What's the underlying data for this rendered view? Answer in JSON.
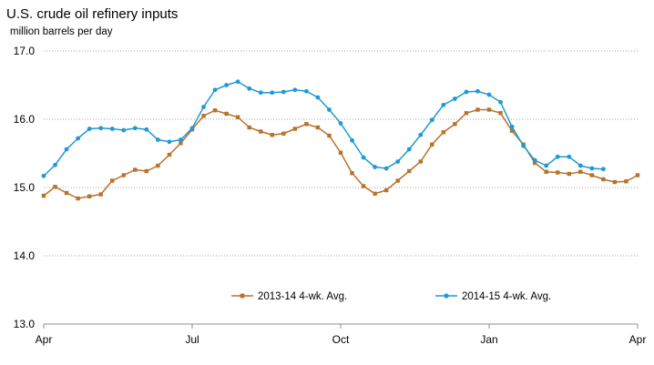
{
  "chart_data": {
    "type": "line",
    "title": "U.S. crude oil refinery inputs",
    "subtitle": "million barrels per day",
    "xlabel": "",
    "ylabel": "",
    "ylim": [
      13.0,
      17.0
    ],
    "y_ticks": [
      "13.0",
      "14.0",
      "15.0",
      "16.0",
      "17.0"
    ],
    "x_ticks": [
      "Apr",
      "Jul",
      "Oct",
      "Jan",
      "Apr"
    ],
    "x_tick_weeks": [
      0,
      13,
      26,
      39,
      52
    ],
    "grid": "horizontal dotted",
    "legend_position": "bottom-center",
    "series": [
      {
        "name": "2013-14  4-wk. Avg.",
        "color": "#B8722C",
        "marker": "square",
        "values": [
          14.88,
          15.01,
          14.92,
          14.84,
          14.87,
          14.9,
          15.1,
          15.18,
          15.26,
          15.24,
          15.32,
          15.48,
          15.65,
          15.85,
          16.05,
          16.13,
          16.08,
          16.03,
          15.88,
          15.82,
          15.77,
          15.79,
          15.86,
          15.93,
          15.88,
          15.76,
          15.51,
          15.21,
          15.02,
          14.91,
          14.96,
          15.1,
          15.24,
          15.38,
          15.63,
          15.81,
          15.93,
          16.09,
          16.14,
          16.14,
          16.09,
          15.83,
          15.63,
          15.36,
          15.23,
          15.22,
          15.2,
          15.23,
          15.18,
          15.12,
          15.08,
          15.09,
          15.18
        ]
      },
      {
        "name": "2014-15  4-wk. Avg.",
        "color": "#1F9AD6",
        "marker": "circle",
        "values": [
          15.17,
          15.33,
          15.56,
          15.72,
          15.86,
          15.87,
          15.86,
          15.84,
          15.87,
          15.85,
          15.7,
          15.67,
          15.7,
          15.87,
          16.18,
          16.43,
          16.5,
          16.55,
          16.45,
          16.39,
          16.39,
          16.4,
          16.43,
          16.41,
          16.32,
          16.14,
          15.94,
          15.69,
          15.44,
          15.3,
          15.28,
          15.38,
          15.56,
          15.77,
          15.99,
          16.21,
          16.3,
          16.4,
          16.41,
          16.36,
          16.25,
          15.89,
          15.61,
          15.4,
          15.32,
          15.45,
          15.45,
          15.32,
          15.28,
          15.27
        ]
      }
    ]
  }
}
